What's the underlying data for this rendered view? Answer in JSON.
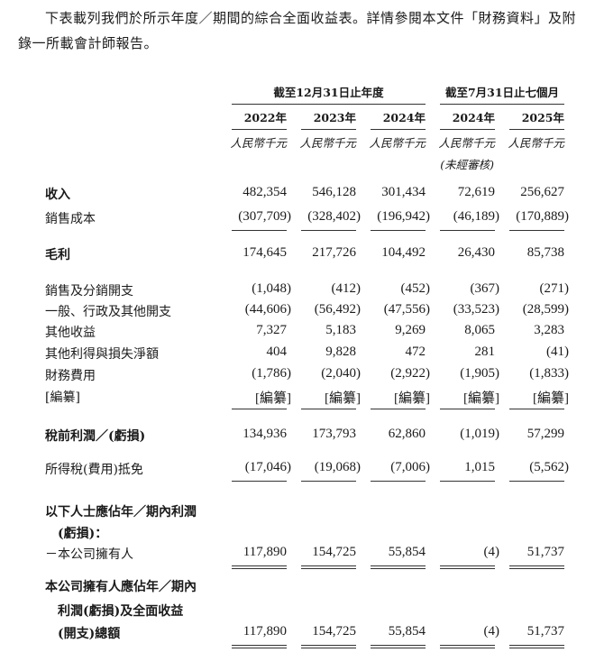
{
  "intro": "下表載列我們於所示年度／期間的綜合全面收益表。詳情參閱本文件「財務資料」及附錄一所載會計師報告。",
  "header": {
    "group_year": "截至12月31日止年度",
    "group_period": "截至7月31日止七個月",
    "years": [
      "2022年",
      "2023年",
      "2024年",
      "2024年",
      "2025年"
    ],
    "units": [
      "人民幣千元",
      "人民幣千元",
      "人民幣千元",
      "人民幣千元",
      "人民幣千元"
    ],
    "unaudited": "(未經審核)"
  },
  "rows": [
    {
      "label": "收入",
      "bold": true,
      "values": [
        "482,354",
        "546,128",
        "301,434",
        "72,619",
        "256,627"
      ]
    },
    {
      "label": "銷售成本",
      "bold": false,
      "values": [
        "(307,709)",
        "(328,402)",
        "(196,942)",
        "(46,189)",
        "(170,889)"
      ]
    },
    {
      "label": "毛利",
      "bold": true,
      "values": [
        "174,645",
        "217,726",
        "104,492",
        "26,430",
        "85,738"
      ]
    },
    {
      "label": "銷售及分銷開支",
      "bold": false,
      "values": [
        "(1,048)",
        "(412)",
        "(452)",
        "(367)",
        "(271)"
      ]
    },
    {
      "label": "一般、行政及其他開支",
      "bold": false,
      "values": [
        "(44,606)",
        "(56,492)",
        "(47,556)",
        "(33,523)",
        "(28,599)"
      ]
    },
    {
      "label": "其他收益",
      "bold": false,
      "values": [
        "7,327",
        "5,183",
        "9,269",
        "8,065",
        "3,283"
      ]
    },
    {
      "label": "其他利得與損失淨額",
      "bold": false,
      "values": [
        "404",
        "9,828",
        "472",
        "281",
        "(41)"
      ]
    },
    {
      "label": "財務費用",
      "bold": false,
      "values": [
        "(1,786)",
        "(2,040)",
        "(2,922)",
        "(1,905)",
        "(1,833)"
      ]
    },
    {
      "label": "[編纂]",
      "bold": false,
      "values": [
        "[編纂]",
        "[編纂]",
        "[編纂]",
        "[編纂]",
        "[編纂]"
      ]
    },
    {
      "label": "稅前利潤／(虧損)",
      "bold": true,
      "values": [
        "134,936",
        "173,793",
        "62,860",
        "(1,019)",
        "57,299"
      ]
    },
    {
      "label": "所得稅(費用)抵免",
      "bold": false,
      "values": [
        "(17,046)",
        "(19,068)",
        "(7,006)",
        "1,015",
        "(5,562)"
      ]
    },
    {
      "label": "以下人士應佔年／期內利潤",
      "bold": true,
      "values": []
    },
    {
      "label": "　(虧損)：",
      "bold": true,
      "values": []
    },
    {
      "label": "－本公司擁有人",
      "bold": false,
      "values": [
        "117,890",
        "154,725",
        "55,854",
        "(4)",
        "51,737"
      ]
    },
    {
      "label": "本公司擁有人應佔年／期內",
      "bold": true,
      "values": []
    },
    {
      "label": "　利潤(虧損)及全面收益",
      "bold": true,
      "values": []
    },
    {
      "label": "　(開支)總額",
      "bold": true,
      "values": [
        "117,890",
        "154,725",
        "55,854",
        "(4)",
        "51,737"
      ]
    }
  ]
}
